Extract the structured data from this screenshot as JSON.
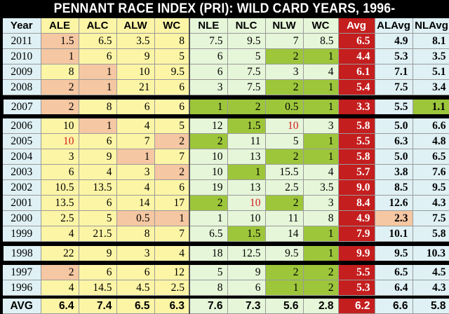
{
  "title": "PENNANT RACE INDEX (PRI): WILD CARD YEARS, 1996-",
  "headers": [
    "Year",
    "ALE",
    "ALC",
    "ALW",
    "WC",
    "NLE",
    "NLC",
    "NLW",
    "WC",
    "Avg",
    "ALAvg",
    "NLAvg"
  ],
  "rows": [
    {
      "year": "2011",
      "cells": [
        "1.5",
        "6.5",
        "3.5",
        "8",
        "7.5",
        "9.5",
        "7",
        "8.5",
        "6.5",
        "4.9",
        "8.1"
      ],
      "hl": [
        1,
        0,
        0,
        0,
        0,
        0,
        0,
        0
      ],
      "red": [],
      "group_hl": [
        0,
        0
      ]
    },
    {
      "year": "2010",
      "cells": [
        "1",
        "6",
        "9",
        "5",
        "6",
        "5",
        "2",
        "1",
        "4.4",
        "5.3",
        "3.5"
      ],
      "hl": [
        1,
        0,
        0,
        0,
        0,
        0,
        1,
        1
      ],
      "red": [],
      "group_hl": [
        0,
        0
      ]
    },
    {
      "year": "2009",
      "cells": [
        "8",
        "1",
        "10",
        "9.5",
        "6",
        "7.5",
        "3",
        "4",
        "6.1",
        "7.1",
        "5.1"
      ],
      "hl": [
        0,
        1,
        0,
        0,
        0,
        0,
        0,
        0
      ],
      "red": [],
      "group_hl": [
        0,
        0
      ]
    },
    {
      "year": "2008",
      "cells": [
        "2",
        "1",
        "21",
        "6",
        "3",
        "7.5",
        "2",
        "1",
        "5.4",
        "7.5",
        "3.4"
      ],
      "hl": [
        1,
        1,
        0,
        0,
        0,
        0,
        1,
        1
      ],
      "red": [],
      "group_hl": [
        0,
        0
      ]
    },
    {
      "year": "2007",
      "cells": [
        "2",
        "8",
        "6",
        "6",
        "1",
        "2",
        "0.5",
        "1",
        "3.3",
        "5.5",
        "1.1"
      ],
      "hl": [
        1,
        0,
        0,
        0,
        1,
        1,
        1,
        1
      ],
      "red": [],
      "group_hl": [
        0,
        1
      ],
      "box": true
    },
    {
      "year": "2006",
      "cells": [
        "10",
        "1",
        "4",
        "5",
        "12",
        "1.5",
        "10",
        "3",
        "5.8",
        "5.0",
        "6.6"
      ],
      "hl": [
        0,
        1,
        0,
        0,
        0,
        1,
        0,
        0
      ],
      "red": [
        6
      ],
      "group_hl": [
        0,
        0
      ]
    },
    {
      "year": "2005",
      "cells": [
        "10",
        "6",
        "7",
        "2",
        "2",
        "11",
        "5",
        "1",
        "5.5",
        "6.3",
        "4.8"
      ],
      "hl": [
        0,
        0,
        0,
        1,
        1,
        0,
        0,
        1
      ],
      "red": [
        0
      ],
      "group_hl": [
        0,
        0
      ]
    },
    {
      "year": "2004",
      "cells": [
        "3",
        "9",
        "1",
        "7",
        "10",
        "13",
        "2",
        "1",
        "5.8",
        "5.0",
        "6.5"
      ],
      "hl": [
        0,
        0,
        1,
        0,
        0,
        0,
        1,
        1
      ],
      "red": [],
      "group_hl": [
        0,
        0
      ]
    },
    {
      "year": "2003",
      "cells": [
        "6",
        "4",
        "3",
        "2",
        "10",
        "1",
        "15.5",
        "4",
        "5.7",
        "3.8",
        "7.6"
      ],
      "hl": [
        0,
        0,
        0,
        1,
        0,
        1,
        0,
        0
      ],
      "red": [],
      "group_hl": [
        0,
        0
      ]
    },
    {
      "year": "2002",
      "cells": [
        "10.5",
        "13.5",
        "4",
        "6",
        "19",
        "13",
        "2.5",
        "3.5",
        "9.0",
        "8.5",
        "9.5"
      ],
      "hl": [
        0,
        0,
        0,
        0,
        0,
        0,
        0,
        0
      ],
      "red": [],
      "group_hl": [
        0,
        0
      ]
    },
    {
      "year": "2001",
      "cells": [
        "13.5",
        "6",
        "14",
        "17",
        "2",
        "10",
        "2",
        "3",
        "8.4",
        "12.6",
        "4.3"
      ],
      "hl": [
        0,
        0,
        0,
        0,
        1,
        0,
        1,
        0
      ],
      "red": [
        5
      ],
      "group_hl": [
        0,
        0
      ]
    },
    {
      "year": "2000",
      "cells": [
        "2.5",
        "5",
        "0.5",
        "1",
        "1",
        "10",
        "11",
        "8",
        "4.9",
        "2.3",
        "7.5"
      ],
      "hl": [
        0,
        0,
        1,
        1,
        0,
        0,
        0,
        0
      ],
      "red": [],
      "group_hl": [
        1,
        0
      ]
    },
    {
      "year": "1999",
      "cells": [
        "4",
        "21.5",
        "8",
        "7",
        "6.5",
        "1.5",
        "14",
        "1",
        "7.9",
        "10.1",
        "5.8"
      ],
      "hl": [
        0,
        0,
        0,
        0,
        0,
        1,
        0,
        1
      ],
      "red": [],
      "group_hl": [
        0,
        0
      ]
    },
    {
      "year": "1998",
      "cells": [
        "22",
        "9",
        "3",
        "4",
        "18",
        "12.5",
        "9.5",
        "1",
        "9.9",
        "9.5",
        "10.3"
      ],
      "hl": [
        0,
        0,
        0,
        0,
        0,
        0,
        0,
        1
      ],
      "red": [],
      "group_hl": [
        0,
        0
      ],
      "box": true
    },
    {
      "year": "1997",
      "cells": [
        "2",
        "6",
        "6",
        "12",
        "5",
        "9",
        "2",
        "2",
        "5.5",
        "6.5",
        "4.5"
      ],
      "hl": [
        1,
        0,
        0,
        0,
        0,
        0,
        1,
        1
      ],
      "red": [],
      "group_hl": [
        0,
        0
      ]
    },
    {
      "year": "1996",
      "cells": [
        "4",
        "14.5",
        "4.5",
        "2.5",
        "8",
        "6",
        "1",
        "2",
        "5.3",
        "6.4",
        "4.3"
      ],
      "hl": [
        0,
        0,
        0,
        0,
        0,
        0,
        1,
        1
      ],
      "red": [],
      "group_hl": [
        0,
        0
      ]
    }
  ],
  "avg_row": {
    "year": "AVG",
    "cells": [
      "6.4",
      "7.4",
      "6.5",
      "6.3",
      "7.6",
      "7.3",
      "5.6",
      "2.8",
      "6.2",
      "6.6",
      "5.8"
    ]
  },
  "colors": {
    "al_bg": "#fdf5a6",
    "nl_bg": "#e6f6d9",
    "year_bg": "#dff1f5",
    "al_highlight": "#f5c7a2",
    "nl_highlight": "#9dc63b",
    "avg_bg": "#c41e1e",
    "red_text": "#d31b1b"
  }
}
